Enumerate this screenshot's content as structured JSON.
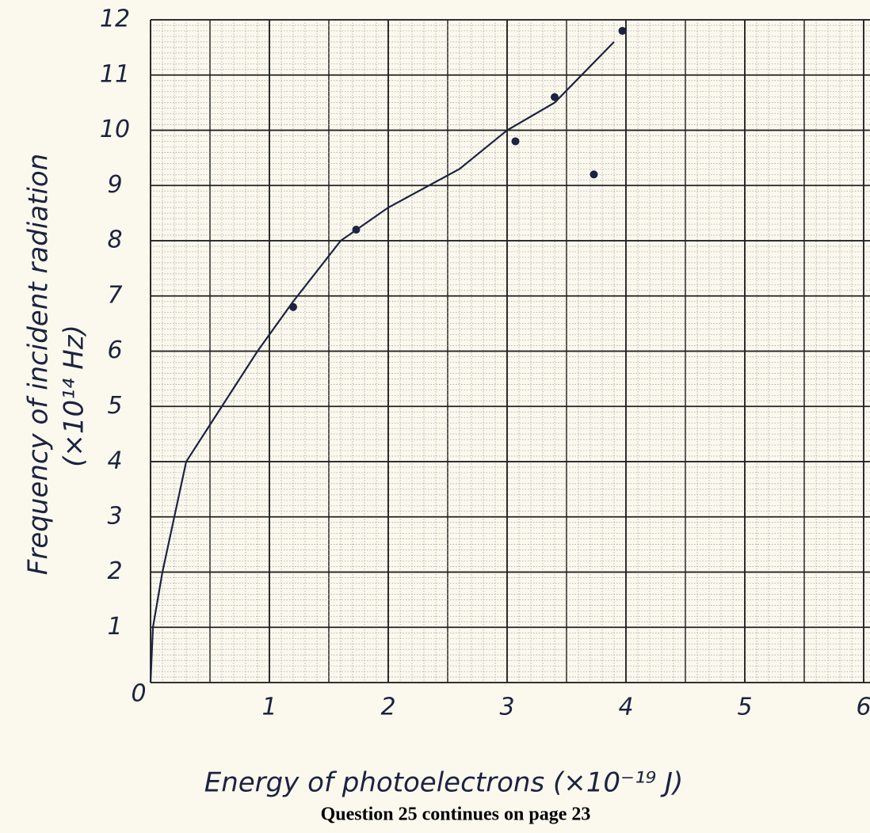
{
  "chart_data": {
    "type": "scatter",
    "ylabel": "Frequency of incident radiation",
    "ylabel_unit": "(×10¹⁴ Hz)",
    "xlabel": "Energy of photoelectrons (×10⁻¹⁹ J)",
    "footer": "Question 25 continues on page 23",
    "xlim": [
      0,
      6
    ],
    "ylim": [
      0,
      12
    ],
    "xticks": [
      0,
      1,
      2,
      3,
      4,
      5,
      6
    ],
    "yticks": [
      0,
      1,
      2,
      3,
      4,
      5,
      6,
      7,
      8,
      9,
      10,
      11,
      12
    ],
    "grid": true,
    "series": [
      {
        "type": "scatter",
        "color": "#1c2340",
        "x": [
          1.2,
          1.73,
          3.07,
          3.4,
          3.73,
          3.97
        ],
        "values": [
          6.8,
          8.2,
          9.8,
          10.6,
          9.2,
          11.8
        ]
      },
      {
        "type": "line",
        "color": "#1c2340",
        "x": [
          0,
          0.02,
          0.1,
          0.3,
          0.6,
          0.9,
          1.2,
          1.6,
          2.0,
          2.6,
          3.0,
          3.4,
          3.9
        ],
        "values": [
          0,
          1,
          2,
          4,
          5,
          6,
          6.9,
          8,
          8.6,
          9.3,
          10,
          10.5,
          11.6
        ]
      }
    ]
  }
}
